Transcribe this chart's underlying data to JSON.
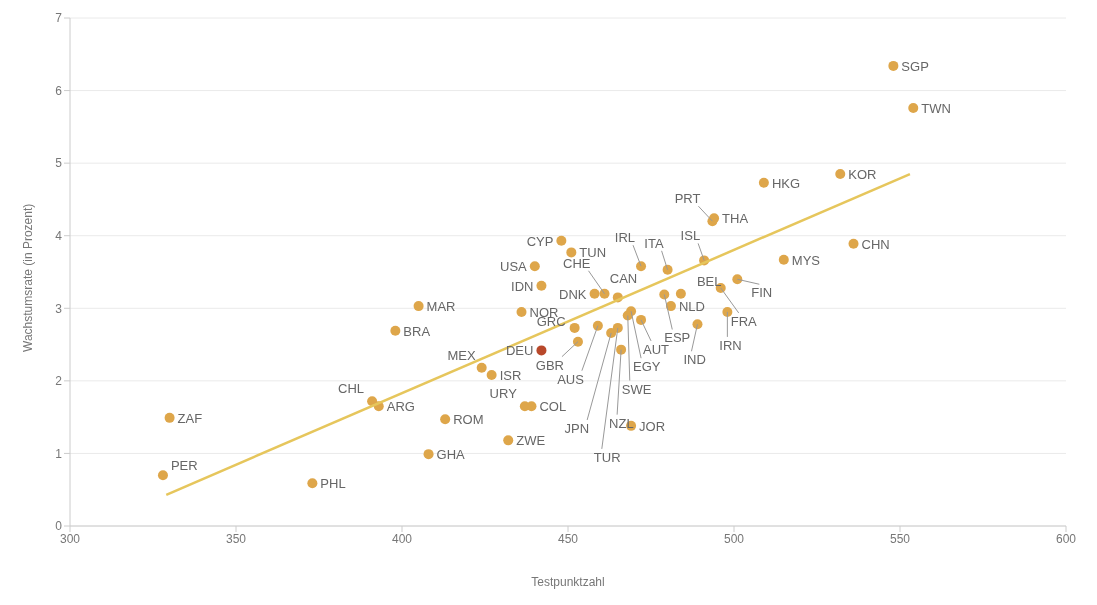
{
  "chart_data": {
    "type": "scatter",
    "xlabel": "Testpunktzahl",
    "ylabel": "Wachstumsrate (in Prozent)",
    "xlim": [
      300,
      600
    ],
    "xticks": [
      300,
      350,
      400,
      450,
      500,
      550,
      600
    ],
    "ylim": [
      0,
      7
    ],
    "yticks": [
      0,
      1,
      2,
      3,
      4,
      5,
      6,
      7
    ],
    "grid": "y",
    "marker": "circle",
    "series": [
      {
        "color": "#dea64a",
        "x": [
          548,
          554,
          509,
          532,
          493.5,
          494,
          536,
          515,
          491,
          480,
          472,
          501,
          496,
          484,
          479,
          481,
          498,
          489,
          465,
          461,
          458,
          448,
          451,
          440,
          442,
          436,
          452,
          453,
          442,
          459,
          463,
          465,
          466,
          468,
          469,
          472,
          424,
          427,
          437,
          439,
          413,
          432,
          408,
          469,
          405,
          398,
          391,
          393,
          330,
          328,
          373
        ],
        "values": [
          6.34,
          5.76,
          4.73,
          4.85,
          4.2,
          4.24,
          3.89,
          3.67,
          3.66,
          3.53,
          3.58,
          3.4,
          3.28,
          3.2,
          3.19,
          3.03,
          2.95,
          2.78,
          3.15,
          3.2,
          3.2,
          3.93,
          3.77,
          3.58,
          3.31,
          2.95,
          2.73,
          2.54,
          2.42,
          2.76,
          2.66,
          2.73,
          2.43,
          2.9,
          2.96,
          2.84,
          2.18,
          2.08,
          1.65,
          1.65,
          1.47,
          1.18,
          0.99,
          1.38,
          3.03,
          2.69,
          1.72,
          1.65,
          1.49,
          0.7,
          0.59
        ],
        "colors": [
          "#dea64a",
          "#dea64a",
          "#dea64a",
          "#dea64a",
          "#dea64a",
          "#dea64a",
          "#dea64a",
          "#dea64a",
          "#dea64a",
          "#dea64a",
          "#dea64a",
          "#dea64a",
          "#dea64a",
          "#dea64a",
          "#dea64a",
          "#dea64a",
          "#dea64a",
          "#dea64a",
          "#dea64a",
          "#dea64a",
          "#dea64a",
          "#dea64a",
          "#dea64a",
          "#dea64a",
          "#dea64a",
          "#dea64a",
          "#dea64a",
          "#dea64a",
          "#b8482a",
          "#dea64a",
          "#dea64a",
          "#dea64a",
          "#dea64a",
          "#dea64a",
          "#dea64a",
          "#dea64a",
          "#dea64a",
          "#dea64a",
          "#dea64a",
          "#dea64a",
          "#dea64a",
          "#dea64a",
          "#dea64a",
          "#dea64a",
          "#dea64a",
          "#dea64a",
          "#dea64a",
          "#dea64a",
          "#dea64a",
          "#dea64a",
          "#dea64a"
        ]
      },
      {
        "type": "line",
        "color": "#e6c65c",
        "marker": "none",
        "x": [
          329,
          553
        ],
        "values": [
          0.43,
          4.85
        ]
      }
    ],
    "annotations": [
      {
        "text": "SGP",
        "x": 548,
        "y": 6.34
      },
      {
        "text": "TWN",
        "x": 554,
        "y": 5.76
      },
      {
        "text": "HKG",
        "x": 509,
        "y": 4.73
      },
      {
        "text": "KOR",
        "x": 532,
        "y": 4.85
      },
      {
        "text": "PRT",
        "x": 493.5,
        "y": 4.2
      },
      {
        "text": "THA",
        "x": 494,
        "y": 4.24
      },
      {
        "text": "CHN",
        "x": 536,
        "y": 3.89
      },
      {
        "text": "MYS",
        "x": 515,
        "y": 3.67
      },
      {
        "text": "ISL",
        "x": 491,
        "y": 3.66
      },
      {
        "text": "ITA",
        "x": 480,
        "y": 3.53
      },
      {
        "text": "IRL",
        "x": 472,
        "y": 3.58
      },
      {
        "text": "FIN",
        "x": 501,
        "y": 3.4
      },
      {
        "text": "FRA",
        "x": 496,
        "y": 3.28
      },
      {
        "text": "BEL",
        "x": 484,
        "y": 3.2
      },
      {
        "text": "ESP",
        "x": 479,
        "y": 3.19
      },
      {
        "text": "NLD",
        "x": 481,
        "y": 3.03
      },
      {
        "text": "IRN",
        "x": 498,
        "y": 2.95
      },
      {
        "text": "IND",
        "x": 489,
        "y": 2.78
      },
      {
        "text": "CAN",
        "x": 465,
        "y": 3.15
      },
      {
        "text": "CHE",
        "x": 461,
        "y": 3.2
      },
      {
        "text": "DNK",
        "x": 458,
        "y": 3.2
      },
      {
        "text": "CYP",
        "x": 448,
        "y": 3.93
      },
      {
        "text": "TUN",
        "x": 451,
        "y": 3.77
      },
      {
        "text": "USA",
        "x": 440,
        "y": 3.58
      },
      {
        "text": "IDN",
        "x": 442,
        "y": 3.31
      },
      {
        "text": "NOR",
        "x": 436,
        "y": 2.95
      },
      {
        "text": "GRC",
        "x": 452,
        "y": 2.73
      },
      {
        "text": "GBR",
        "x": 453,
        "y": 2.54
      },
      {
        "text": "DEU",
        "x": 442,
        "y": 2.42
      },
      {
        "text": "AUS",
        "x": 459,
        "y": 2.76
      },
      {
        "text": "JPN",
        "x": 463,
        "y": 2.66
      },
      {
        "text": "TUR",
        "x": 465,
        "y": 2.73
      },
      {
        "text": "NZL",
        "x": 466,
        "y": 2.43
      },
      {
        "text": "SWE",
        "x": 468,
        "y": 2.9
      },
      {
        "text": "EGY",
        "x": 469,
        "y": 2.96
      },
      {
        "text": "AUT",
        "x": 472,
        "y": 2.84
      },
      {
        "text": "MEX",
        "x": 424,
        "y": 2.18
      },
      {
        "text": "ISR",
        "x": 427,
        "y": 2.08
      },
      {
        "text": "URY",
        "x": 437,
        "y": 1.65
      },
      {
        "text": "COL",
        "x": 439,
        "y": 1.65
      },
      {
        "text": "ROM",
        "x": 413,
        "y": 1.47
      },
      {
        "text": "ZWE",
        "x": 432,
        "y": 1.18
      },
      {
        "text": "GHA",
        "x": 408,
        "y": 0.99
      },
      {
        "text": "JOR",
        "x": 469,
        "y": 1.38
      },
      {
        "text": "MAR",
        "x": 405,
        "y": 3.03
      },
      {
        "text": "BRA",
        "x": 398,
        "y": 2.69
      },
      {
        "text": "CHL",
        "x": 391,
        "y": 1.72
      },
      {
        "text": "ARG",
        "x": 393,
        "y": 1.65
      },
      {
        "text": "ZAF",
        "x": 330,
        "y": 1.49
      },
      {
        "text": "PER",
        "x": 328,
        "y": 0.7
      },
      {
        "text": "PHL",
        "x": 373,
        "y": 0.59
      }
    ]
  }
}
